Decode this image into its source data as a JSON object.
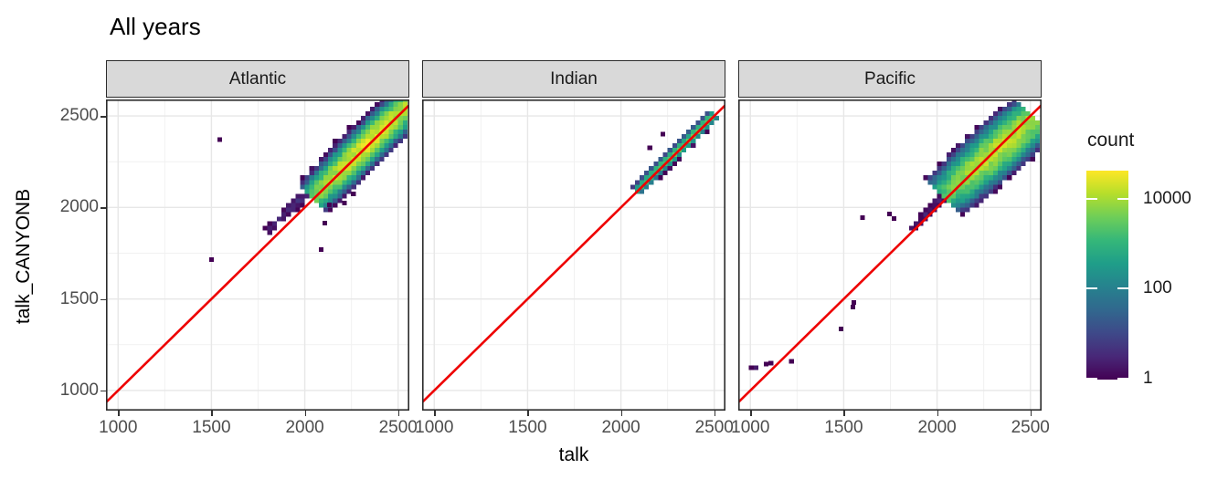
{
  "title": "All years",
  "x_axis_title": "talk",
  "y_axis_title": "talk_CANYONB",
  "legend": {
    "title": "count",
    "tick_labels": [
      "10000",
      "100",
      "1"
    ],
    "tick_values": [
      10000,
      100,
      1
    ],
    "scale": "log10",
    "domain_max": 39000
  },
  "colors": {
    "background": "#ffffff",
    "identity_line": "#ee0000",
    "strip_bg": "#d9d9d9",
    "panel_border": "#2b2b2b",
    "grid_major": "#e7e7e7",
    "grid_minor": "#f1f1f1",
    "tick_label": "#4d4d4d",
    "text": "#1a1a1a",
    "viridis": [
      "#440154",
      "#482878",
      "#3e4989",
      "#31688e",
      "#26828e",
      "#1f9e89",
      "#35b779",
      "#6ece58",
      "#b5de2b",
      "#fde725"
    ]
  },
  "chart_data": {
    "type": "heatmap",
    "subtype": "2d-binned scatter (geom_bin2d), faceted, viridis fill on log10 count, red y=x reference line",
    "title": "All years",
    "xlabel": "talk",
    "ylabel": "talk_CANYONB",
    "x_ticks": [
      1000,
      1500,
      2000,
      2500
    ],
    "y_ticks": [
      1000,
      1500,
      2000,
      2500
    ],
    "x_minor_ticks": [
      1250,
      1750,
      2250
    ],
    "y_minor_ticks": [
      1250,
      1750,
      2250
    ],
    "x_range": [
      935,
      2560
    ],
    "y_range": [
      890,
      2590
    ],
    "bin_size": 25,
    "grid": true,
    "legend_position": "right",
    "identity_line": "y = x",
    "facets": [
      {
        "label": "Atlantic",
        "seed": 7,
        "description": "dense diagonal cluster 2050-2560 peaking ~ (2350,2360) count>10000, wide sparse halo mostly above line, faint trail 1780-2080 above line",
        "bands": [
          {
            "slope": 1,
            "offset": 8,
            "s0": 2040,
            "s1": 2620,
            "peak_s": 2350,
            "amp": 24000,
            "sig_l": 160,
            "sig_w": 38
          },
          {
            "slope": 1,
            "offset": 55,
            "s0": 1930,
            "s1": 2580,
            "peak_s": 2300,
            "amp": 1.7,
            "sig_l": 220,
            "sig_w": 115
          },
          {
            "slope": 1,
            "offset": 70,
            "s0": 1780,
            "s1": 2100,
            "peak_s": 2100,
            "amp": 3.2,
            "sig_l": 280,
            "sig_w": 20
          }
        ],
        "outliers": [
          [
            1545,
            2370,
            1
          ],
          [
            1500,
            1715,
            1
          ],
          [
            2087,
            1770,
            1
          ],
          [
            2107,
            1915,
            1
          ],
          [
            2131,
            2015,
            1
          ],
          [
            2212,
            2025,
            1
          ],
          [
            2260,
            2075,
            1
          ]
        ]
      },
      {
        "label": "Indian",
        "seed": 13,
        "description": "narrow tight diagonal band 2080-2500, teal/green core ~ (2330,2335) count~2500, two isolated bins above line",
        "bands": [
          {
            "slope": 1,
            "offset": 6,
            "s0": 2085,
            "s1": 2500,
            "peak_s": 2330,
            "amp": 2800,
            "sig_l": 140,
            "sig_w": 14
          },
          {
            "slope": 1,
            "offset": 10,
            "s0": 2085,
            "s1": 2500,
            "peak_s": 2330,
            "amp": 1.1,
            "sig_l": 150,
            "sig_w": 38
          }
        ],
        "outliers": [
          [
            2155,
            2325,
            1
          ],
          [
            2225,
            2400,
            1
          ]
        ]
      },
      {
        "label": "Pacific",
        "seed": 3,
        "description": "broad tilted cluster 2050-2480 (slope<1) crossing the red line, bright core ~ (2330,2330) count>10000; low outliers near (1000-1220,1125-1160), (1485,1335), (1550,1470), scattered 1600-2050 above line",
        "bands": [
          {
            "slope": 0.9,
            "cx": 2260,
            "cy": 2258,
            "offset": 0,
            "s0": 2040,
            "s1": 2500,
            "peak_s": 2330,
            "amp": 15000,
            "sig_l": 140,
            "sig_w": 50
          },
          {
            "slope": 0.9,
            "cx": 2260,
            "cy": 2258,
            "offset": 0,
            "s0": 2000,
            "s1": 2500,
            "peak_s": 2320,
            "amp": 1.6,
            "sig_l": 170,
            "sig_w": 100
          },
          {
            "slope": 1,
            "offset": 20,
            "s0": 1870,
            "s1": 2070,
            "peak_s": 2070,
            "amp": 2.8,
            "sig_l": 200,
            "sig_w": 22
          }
        ],
        "outliers": [
          [
            1005,
            1125,
            1
          ],
          [
            1030,
            1125,
            2
          ],
          [
            1085,
            1145,
            1
          ],
          [
            1110,
            1150,
            1
          ],
          [
            1220,
            1160,
            1
          ],
          [
            1485,
            1335,
            1
          ],
          [
            1550,
            1455,
            1
          ],
          [
            1555,
            1480,
            1
          ],
          [
            1600,
            1945,
            1
          ],
          [
            1745,
            1965,
            1
          ],
          [
            1770,
            1940,
            1
          ]
        ]
      }
    ]
  }
}
